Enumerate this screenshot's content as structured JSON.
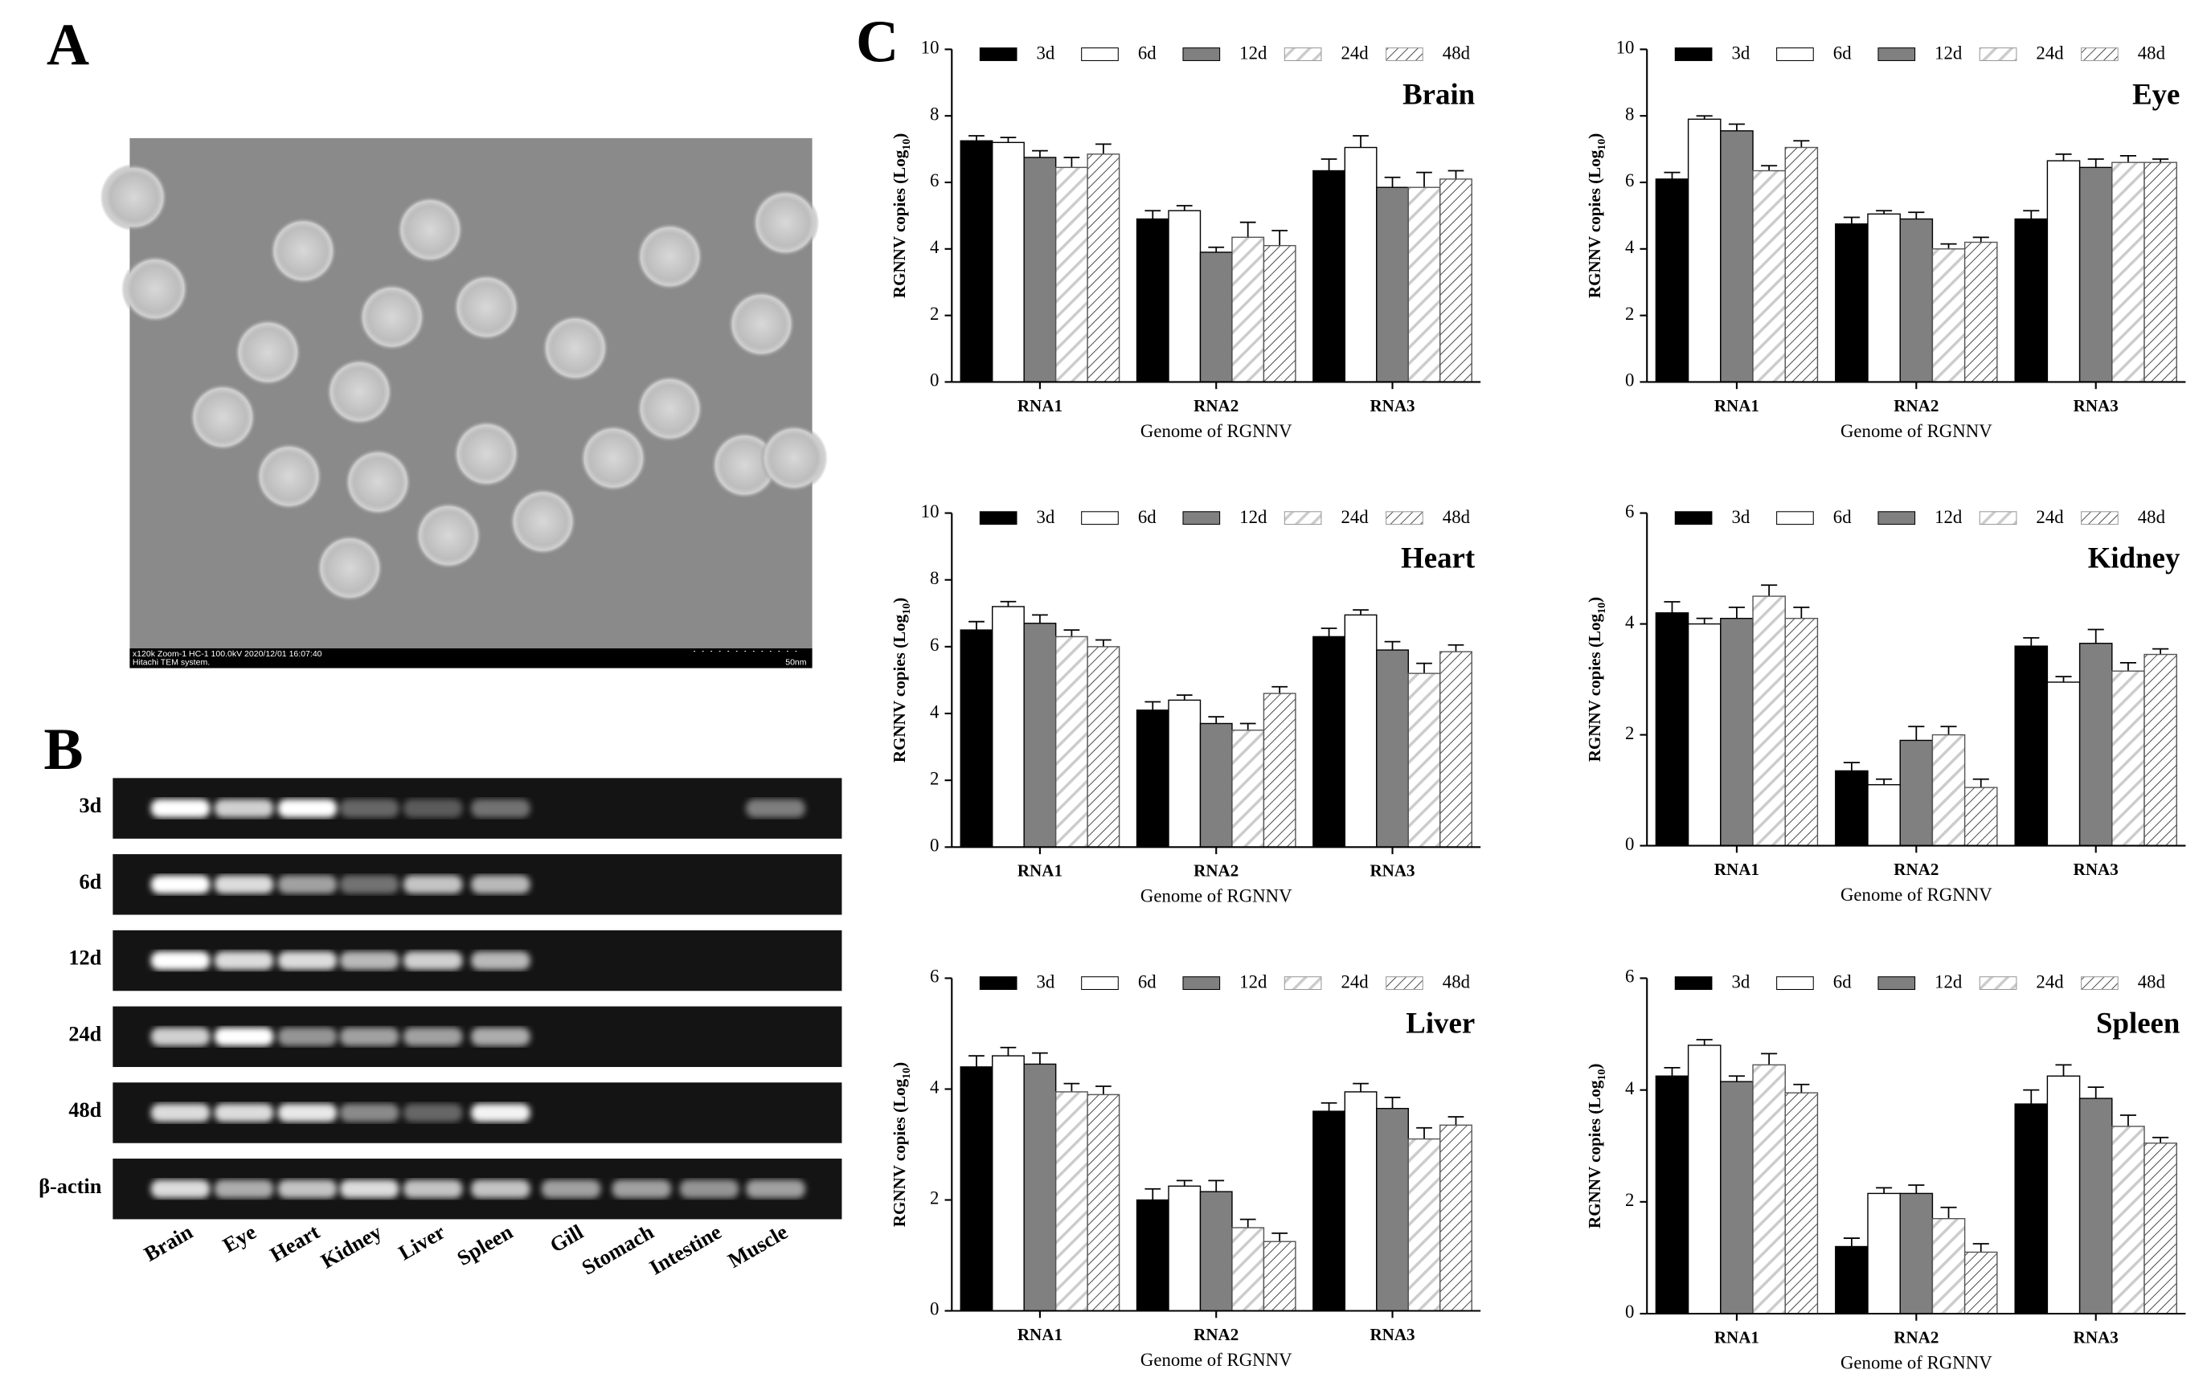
{
  "figure": {
    "panel_labels": [
      "A",
      "B",
      "C"
    ],
    "tem": {
      "caption": [
        "x120k Zoom-1 HC-1 100.0kV 2020/12/01 16:07:40",
        "Hitachi TEM system."
      ],
      "scale_label": "50nm"
    },
    "gel": {
      "row_labels": [
        "3d",
        "6d",
        "12d",
        "24d",
        "48d",
        "β-actin"
      ],
      "lane_labels": [
        "Brain",
        "Eye",
        "Heart",
        "Kidney",
        "Liver",
        "Spleen",
        "Gill",
        "Stomach",
        "Intestine",
        "Muscle"
      ]
    }
  },
  "chart_data": [
    {
      "type": "bar",
      "title": "Brain",
      "categories": [
        "RNA1",
        "RNA2",
        "RNA3"
      ],
      "x_label": "Genome of RGNNV",
      "y_label": [
        "RGNNV copies (Log",
        "10",
        ")"
      ],
      "ylim": [
        0,
        10
      ],
      "yticks": [
        0,
        2,
        4,
        6,
        8,
        10
      ],
      "series": [
        {
          "name": "3d",
          "color": "#000000",
          "values": [
            7.25,
            4.9,
            6.35
          ],
          "errors": [
            0.15,
            0.25,
            0.35
          ]
        },
        {
          "name": "6d",
          "color": "#ffffff",
          "values": [
            7.2,
            5.15,
            7.05
          ],
          "errors": [
            0.15,
            0.15,
            0.35
          ]
        },
        {
          "name": "12d",
          "color": "#808080",
          "values": [
            6.75,
            3.9,
            5.85
          ],
          "errors": [
            0.2,
            0.15,
            0.3
          ]
        },
        {
          "name": "24d",
          "color": "#cccccc",
          "hatch": "light",
          "values": [
            6.45,
            4.35,
            5.85
          ],
          "errors": [
            0.3,
            0.45,
            0.45
          ]
        },
        {
          "name": "48d",
          "color": "#333333",
          "hatch": "dark",
          "values": [
            6.85,
            4.1,
            6.1
          ],
          "errors": [
            0.3,
            0.45,
            0.25
          ]
        }
      ]
    },
    {
      "type": "bar",
      "title": "Eye",
      "categories": [
        "RNA1",
        "RNA2",
        "RNA3"
      ],
      "x_label": "Genome of RGNNV",
      "y_label": [
        "RGNNV copies (Log",
        "10",
        ")"
      ],
      "ylim": [
        0,
        10
      ],
      "yticks": [
        0,
        2,
        4,
        6,
        8,
        10
      ],
      "series": [
        {
          "name": "3d",
          "color": "#000000",
          "values": [
            6.1,
            4.75,
            4.9
          ],
          "errors": [
            0.2,
            0.2,
            0.25
          ]
        },
        {
          "name": "6d",
          "color": "#ffffff",
          "values": [
            7.9,
            5.05,
            6.65
          ],
          "errors": [
            0.1,
            0.1,
            0.2
          ]
        },
        {
          "name": "12d",
          "color": "#808080",
          "values": [
            7.55,
            4.9,
            6.45
          ],
          "errors": [
            0.2,
            0.2,
            0.25
          ]
        },
        {
          "name": "24d",
          "color": "#cccccc",
          "hatch": "light",
          "values": [
            6.35,
            4.0,
            6.6
          ],
          "errors": [
            0.15,
            0.15,
            0.2
          ]
        },
        {
          "name": "48d",
          "color": "#333333",
          "hatch": "dark",
          "values": [
            7.05,
            4.2,
            6.6
          ],
          "errors": [
            0.2,
            0.15,
            0.1
          ]
        }
      ]
    },
    {
      "type": "bar",
      "title": "Heart",
      "categories": [
        "RNA1",
        "RNA2",
        "RNA3"
      ],
      "x_label": "Genome of RGNNV",
      "y_label": [
        "RGNNV copies (Log",
        "10",
        ")"
      ],
      "ylim": [
        0,
        10
      ],
      "yticks": [
        0,
        2,
        4,
        6,
        8,
        10
      ],
      "series": [
        {
          "name": "3d",
          "color": "#000000",
          "values": [
            6.5,
            4.1,
            6.3
          ],
          "errors": [
            0.25,
            0.25,
            0.25
          ]
        },
        {
          "name": "6d",
          "color": "#ffffff",
          "values": [
            7.2,
            4.4,
            6.95
          ],
          "errors": [
            0.15,
            0.15,
            0.15
          ]
        },
        {
          "name": "12d",
          "color": "#808080",
          "values": [
            6.7,
            3.7,
            5.9
          ],
          "errors": [
            0.25,
            0.2,
            0.25
          ]
        },
        {
          "name": "24d",
          "color": "#cccccc",
          "hatch": "light",
          "values": [
            6.3,
            3.5,
            5.2
          ],
          "errors": [
            0.2,
            0.2,
            0.3
          ]
        },
        {
          "name": "48d",
          "color": "#333333",
          "hatch": "dark",
          "values": [
            6.0,
            4.6,
            5.85
          ],
          "errors": [
            0.2,
            0.2,
            0.2
          ]
        }
      ]
    },
    {
      "type": "bar",
      "title": "Kidney",
      "categories": [
        "RNA1",
        "RNA2",
        "RNA3"
      ],
      "x_label": "Genome of RGNNV",
      "y_label": [
        "RGNNV copies (Log",
        "10",
        ")"
      ],
      "ylim": [
        0,
        6
      ],
      "yticks": [
        0,
        2,
        4,
        6
      ],
      "series": [
        {
          "name": "3d",
          "color": "#000000",
          "values": [
            4.2,
            1.35,
            3.6
          ],
          "errors": [
            0.2,
            0.15,
            0.15
          ]
        },
        {
          "name": "6d",
          "color": "#ffffff",
          "values": [
            4.0,
            1.1,
            2.95
          ],
          "errors": [
            0.1,
            0.1,
            0.1
          ]
        },
        {
          "name": "12d",
          "color": "#808080",
          "values": [
            4.1,
            1.9,
            3.65
          ],
          "errors": [
            0.2,
            0.25,
            0.25
          ]
        },
        {
          "name": "24d",
          "color": "#cccccc",
          "hatch": "light",
          "values": [
            4.5,
            2.0,
            3.15
          ],
          "errors": [
            0.2,
            0.15,
            0.15
          ]
        },
        {
          "name": "48d",
          "color": "#333333",
          "hatch": "dark",
          "values": [
            4.1,
            1.05,
            3.45
          ],
          "errors": [
            0.2,
            0.15,
            0.1
          ]
        }
      ]
    },
    {
      "type": "bar",
      "title": "Liver",
      "categories": [
        "RNA1",
        "RNA2",
        "RNA3"
      ],
      "x_label": "Genome of RGNNV",
      "y_label": [
        "RGNNV copies (Log",
        "10",
        ")"
      ],
      "ylim": [
        0,
        6
      ],
      "yticks": [
        0,
        2,
        4,
        6
      ],
      "series": [
        {
          "name": "3d",
          "color": "#000000",
          "values": [
            4.4,
            2.0,
            3.6
          ],
          "errors": [
            0.2,
            0.2,
            0.15
          ]
        },
        {
          "name": "6d",
          "color": "#ffffff",
          "values": [
            4.6,
            2.25,
            3.95
          ],
          "errors": [
            0.15,
            0.1,
            0.15
          ]
        },
        {
          "name": "12d",
          "color": "#808080",
          "values": [
            4.45,
            2.15,
            3.65
          ],
          "errors": [
            0.2,
            0.2,
            0.2
          ]
        },
        {
          "name": "24d",
          "color": "#cccccc",
          "hatch": "light",
          "values": [
            3.95,
            1.5,
            3.1
          ],
          "errors": [
            0.15,
            0.15,
            0.2
          ]
        },
        {
          "name": "48d",
          "color": "#333333",
          "hatch": "dark",
          "values": [
            3.9,
            1.25,
            3.35
          ],
          "errors": [
            0.15,
            0.15,
            0.15
          ]
        }
      ]
    },
    {
      "type": "bar",
      "title": "Spleen",
      "categories": [
        "RNA1",
        "RNA2",
        "RNA3"
      ],
      "x_label": "Genome of RGNNV",
      "y_label": [
        "RGNNV copies (Log",
        "10",
        ")"
      ],
      "ylim": [
        0,
        6
      ],
      "yticks": [
        0,
        2,
        4,
        6
      ],
      "series": [
        {
          "name": "3d",
          "color": "#000000",
          "values": [
            4.25,
            1.2,
            3.75
          ],
          "errors": [
            0.15,
            0.15,
            0.25
          ]
        },
        {
          "name": "6d",
          "color": "#ffffff",
          "values": [
            4.8,
            2.15,
            4.25
          ],
          "errors": [
            0.1,
            0.1,
            0.2
          ]
        },
        {
          "name": "12d",
          "color": "#808080",
          "values": [
            4.15,
            2.15,
            3.85
          ],
          "errors": [
            0.1,
            0.15,
            0.2
          ]
        },
        {
          "name": "24d",
          "color": "#cccccc",
          "hatch": "light",
          "values": [
            4.45,
            1.7,
            3.35
          ],
          "errors": [
            0.2,
            0.2,
            0.2
          ]
        },
        {
          "name": "48d",
          "color": "#333333",
          "hatch": "dark",
          "values": [
            3.95,
            1.1,
            3.05
          ],
          "errors": [
            0.15,
            0.15,
            0.1
          ]
        }
      ]
    }
  ]
}
